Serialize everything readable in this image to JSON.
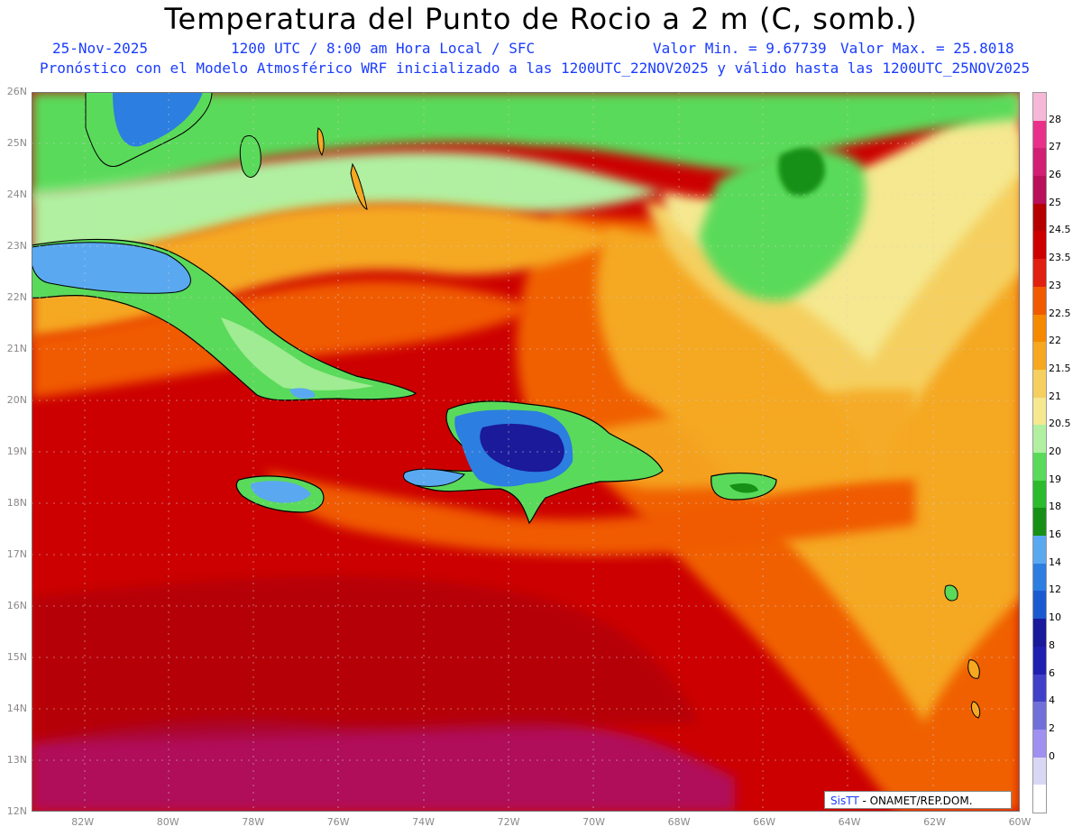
{
  "title": "Temperatura del Punto de Rocio a 2 m (C, somb.)",
  "subtitle": {
    "date": "25-Nov-2025",
    "time": "1200 UTC / 8:00 am Hora Local / SFC",
    "min_label": "Valor Min. = 9.67739",
    "max_label": "Valor Max. = 25.8018",
    "forecast": "Pronóstico con el Modelo Atmosférico WRF inicializado a las 1200UTC_22NOV2025 y válido hasta las  1200UTC_25NOV2025"
  },
  "map": {
    "lat_ticks": [
      "26N",
      "25N",
      "24N",
      "23N",
      "22N",
      "21N",
      "20N",
      "19N",
      "18N",
      "17N",
      "16N",
      "15N",
      "14N",
      "13N",
      "12N"
    ],
    "lon_ticks": [
      "82W",
      "80W",
      "78W",
      "76W",
      "74W",
      "72W",
      "70W",
      "68W",
      "66W",
      "64W",
      "62W",
      "60W"
    ],
    "lat_range": [
      12,
      26
    ],
    "lon_range": [
      -83.2,
      -60
    ]
  },
  "colorbar": {
    "labels": [
      "28",
      "27",
      "26",
      "25",
      "24.5",
      "23.5",
      "23",
      "22.5",
      "22",
      "21.5",
      "21",
      "20.5",
      "20",
      "19",
      "18",
      "16",
      "14",
      "12",
      "10",
      "8",
      "6",
      "4",
      "2",
      "0"
    ],
    "colors": [
      "#f5b8d6",
      "#e8308a",
      "#d11f74",
      "#b8105a",
      "#b50000",
      "#cc0000",
      "#e02010",
      "#f05a00",
      "#f58a00",
      "#f5a820",
      "#f5d060",
      "#f5e890",
      "#b0f0a0",
      "#5ada5a",
      "#2cbb2c",
      "#169016",
      "#5aa8f0",
      "#2c7ee0",
      "#1a5ad0",
      "#1a1a9a",
      "#2020b0",
      "#4040c8",
      "#7070d8",
      "#a090f0",
      "#d8d8f5",
      "#ffffff"
    ]
  },
  "logo": {
    "brand": "SisTT",
    "org": " - ONAMET/REP.DOM."
  }
}
